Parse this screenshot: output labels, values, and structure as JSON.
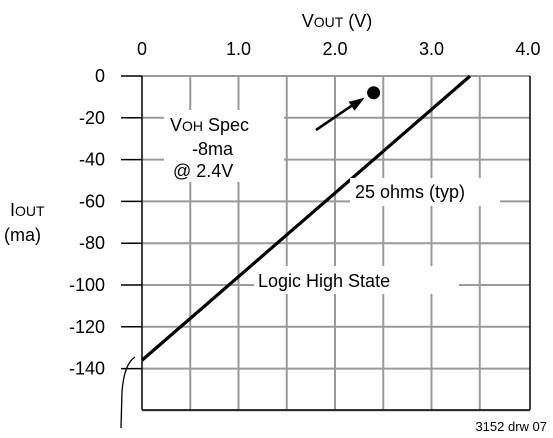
{
  "chart_data": {
    "type": "line",
    "title": "",
    "xlabel": {
      "main": "V",
      "sub": "OUT",
      "unit": " (V)"
    },
    "ylabel": {
      "main": "I",
      "sub": "OUT",
      "unit": "(ma)"
    },
    "xlim": [
      0,
      4.0
    ],
    "ylim": [
      0,
      -140
    ],
    "x_ticks": [
      {
        "value": 0,
        "label": "0"
      },
      {
        "value": 1,
        "label": "1.0"
      },
      {
        "value": 2,
        "label": "2.0"
      },
      {
        "value": 3,
        "label": "3.0"
      },
      {
        "value": 4,
        "label": "4.0"
      }
    ],
    "y_ticks": [
      {
        "value": 0,
        "label": "0"
      },
      {
        "value": -20,
        "label": "-20"
      },
      {
        "value": -40,
        "label": "-40"
      },
      {
        "value": -60,
        "label": "-60"
      },
      {
        "value": -80,
        "label": "-80"
      },
      {
        "value": -100,
        "label": "-100"
      },
      {
        "value": -120,
        "label": "-120"
      },
      {
        "value": -140,
        "label": "-140"
      }
    ],
    "grid": true,
    "series": [
      {
        "points": [
          {
            "x": 0,
            "y": -136
          },
          {
            "x": 3.4,
            "y": 0
          }
        ]
      }
    ],
    "spec_point": {
      "x": 2.4,
      "y": -8
    },
    "annotations": {
      "voh_main": "V",
      "voh_sub": "OH",
      "voh_rest": " Spec",
      "spec_value": "-8ma",
      "spec_at": "@ 2.4V",
      "impedance": "25 ohms (typ)",
      "state": "Logic High State"
    },
    "drawing_number": "3152 drw 07"
  }
}
